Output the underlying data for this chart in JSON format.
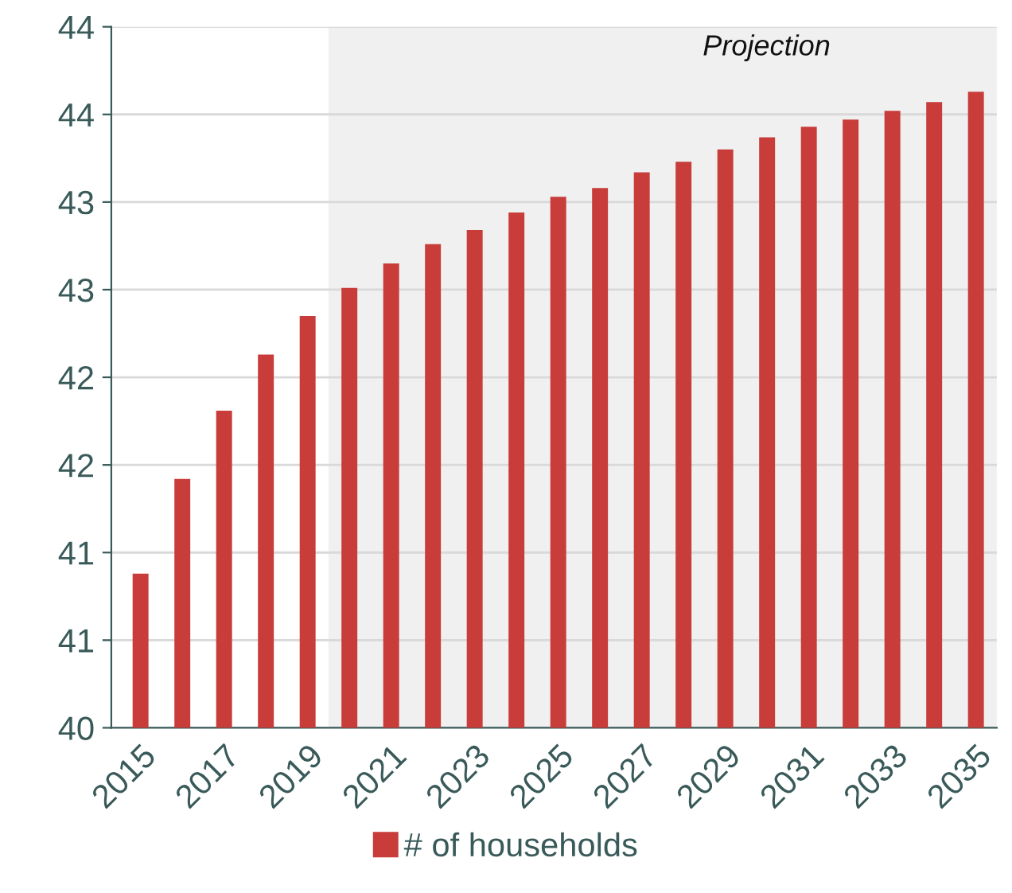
{
  "chart_data": {
    "type": "bar",
    "categories": [
      "2015",
      null,
      "2017",
      null,
      "2019",
      null,
      "2021",
      null,
      "2023",
      null,
      "2025",
      null,
      "2027",
      null,
      "2029",
      null,
      "2031",
      null,
      "2033",
      null,
      "2035"
    ],
    "series": [
      {
        "name": "# of households",
        "color": "#c83c3a",
        "values": [
          40.88,
          41.42,
          41.81,
          42.13,
          42.35,
          42.51,
          42.65,
          42.76,
          42.84,
          42.94,
          43.03,
          43.08,
          43.17,
          43.23,
          43.3,
          43.37,
          43.43,
          43.47,
          43.52,
          43.57,
          43.63
        ]
      }
    ],
    "ylim": [
      40,
      44
    ],
    "yticks": [
      40,
      {
        "value": 40.5,
        "label": "41"
      },
      {
        "value": 41,
        "label": "41"
      },
      {
        "value": 41.5,
        "label": "42"
      },
      {
        "value": 42,
        "label": "42"
      },
      {
        "value": 42.5,
        "label": "43"
      },
      {
        "value": 43,
        "label": "43"
      },
      {
        "value": 43.5,
        "label": "44"
      },
      44
    ],
    "bands": [
      {
        "axis": "x",
        "from": "2019",
        "to": "2035",
        "label": "Projection",
        "color": "#f0f0f0"
      }
    ],
    "grid": "y",
    "legend": "bottom"
  }
}
